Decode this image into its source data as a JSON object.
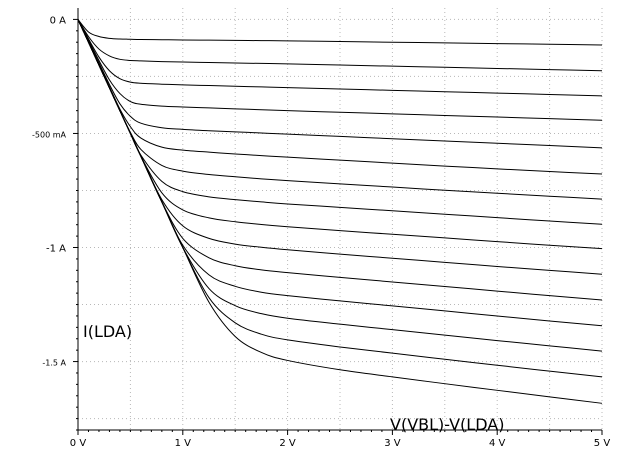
{
  "chart_data": {
    "type": "line",
    "xlabel": "V(VBL)-V(LDA)",
    "ylabel": "I(LDA)",
    "xlim": [
      0,
      5
    ],
    "ylim": [
      -1.8,
      0.05
    ],
    "x_ticks": [
      {
        "value": 0,
        "label": "0 V"
      },
      {
        "value": 1,
        "label": "1 V"
      },
      {
        "value": 2,
        "label": "2 V"
      },
      {
        "value": 3,
        "label": "3 V"
      },
      {
        "value": 4,
        "label": "4 V"
      },
      {
        "value": 5,
        "label": "5 V"
      }
    ],
    "y_ticks": [
      {
        "value": 0,
        "label": "0 A"
      },
      {
        "value": -0.5,
        "label": "-500 mA"
      },
      {
        "value": -1,
        "label": "-1 A"
      },
      {
        "value": -1.5,
        "label": "-1.5 A"
      }
    ],
    "grid": true,
    "x": [
      0,
      0.1,
      0.2,
      0.3,
      0.4,
      0.5,
      0.6,
      0.8,
      1.0,
      1.25,
      1.5,
      1.75,
      2.0,
      2.5,
      3.0,
      3.5,
      4.0,
      4.5,
      5.0
    ],
    "series": [
      {
        "values": [
          0,
          -0.055,
          -0.075,
          -0.083,
          -0.086,
          -0.087,
          -0.088,
          -0.089,
          -0.09,
          -0.091,
          -0.092,
          -0.093,
          -0.094,
          -0.097,
          -0.1,
          -0.103,
          -0.106,
          -0.109,
          -0.112
        ]
      },
      {
        "values": [
          0,
          -0.075,
          -0.13,
          -0.16,
          -0.175,
          -0.18,
          -0.182,
          -0.185,
          -0.187,
          -0.189,
          -0.191,
          -0.193,
          -0.195,
          -0.2,
          -0.205,
          -0.21,
          -0.215,
          -0.22,
          -0.225
        ]
      },
      {
        "values": [
          0,
          -0.085,
          -0.165,
          -0.225,
          -0.26,
          -0.275,
          -0.28,
          -0.284,
          -0.287,
          -0.29,
          -0.293,
          -0.296,
          -0.299,
          -0.305,
          -0.311,
          -0.317,
          -0.323,
          -0.329,
          -0.335
        ]
      },
      {
        "values": [
          0,
          -0.09,
          -0.18,
          -0.265,
          -0.325,
          -0.36,
          -0.372,
          -0.38,
          -0.384,
          -0.388,
          -0.392,
          -0.396,
          -0.4,
          -0.407,
          -0.414,
          -0.421,
          -0.428,
          -0.435,
          -0.442
        ]
      },
      {
        "values": [
          0,
          -0.095,
          -0.19,
          -0.285,
          -0.37,
          -0.425,
          -0.455,
          -0.475,
          -0.482,
          -0.488,
          -0.493,
          -0.498,
          -0.503,
          -0.513,
          -0.523,
          -0.533,
          -0.543,
          -0.553,
          -0.563
        ]
      },
      {
        "values": [
          0,
          -0.098,
          -0.197,
          -0.295,
          -0.393,
          -0.47,
          -0.52,
          -0.56,
          -0.573,
          -0.582,
          -0.59,
          -0.597,
          -0.604,
          -0.617,
          -0.63,
          -0.643,
          -0.655,
          -0.667,
          -0.678
        ]
      },
      {
        "values": [
          0,
          -0.1,
          -0.2,
          -0.3,
          -0.4,
          -0.495,
          -0.57,
          -0.64,
          -0.665,
          -0.68,
          -0.69,
          -0.699,
          -0.707,
          -0.721,
          -0.735,
          -0.749,
          -0.762,
          -0.775,
          -0.788
        ]
      },
      {
        "values": [
          0,
          -0.1,
          -0.2,
          -0.3,
          -0.4,
          -0.5,
          -0.595,
          -0.71,
          -0.755,
          -0.778,
          -0.79,
          -0.8,
          -0.809,
          -0.824,
          -0.839,
          -0.854,
          -0.869,
          -0.884,
          -0.898
        ]
      },
      {
        "values": [
          0,
          -0.1,
          -0.2,
          -0.3,
          -0.4,
          -0.5,
          -0.6,
          -0.76,
          -0.835,
          -0.87,
          -0.887,
          -0.899,
          -0.909,
          -0.926,
          -0.942,
          -0.958,
          -0.974,
          -0.99,
          -1.005
        ]
      },
      {
        "values": [
          0,
          -0.1,
          -0.2,
          -0.3,
          -0.4,
          -0.5,
          -0.6,
          -0.79,
          -0.905,
          -0.96,
          -0.985,
          -0.999,
          -1.01,
          -1.029,
          -1.047,
          -1.065,
          -1.083,
          -1.1,
          -1.117
        ]
      },
      {
        "values": [
          0,
          -0.1,
          -0.2,
          -0.3,
          -0.4,
          -0.5,
          -0.6,
          -0.8,
          -0.96,
          -1.045,
          -1.08,
          -1.098,
          -1.11,
          -1.131,
          -1.151,
          -1.171,
          -1.191,
          -1.211,
          -1.23
        ]
      },
      {
        "values": [
          0,
          -0.1,
          -0.2,
          -0.3,
          -0.4,
          -0.5,
          -0.6,
          -0.8,
          -0.99,
          -1.12,
          -1.17,
          -1.196,
          -1.211,
          -1.234,
          -1.256,
          -1.278,
          -1.3,
          -1.322,
          -1.343
        ]
      },
      {
        "values": [
          0,
          -0.1,
          -0.2,
          -0.3,
          -0.4,
          -0.5,
          -0.6,
          -0.8,
          -1.0,
          -1.18,
          -1.255,
          -1.29,
          -1.31,
          -1.336,
          -1.36,
          -1.384,
          -1.408,
          -1.431,
          -1.454
        ]
      },
      {
        "values": [
          0,
          -0.1,
          -0.2,
          -0.3,
          -0.4,
          -0.5,
          -0.6,
          -0.8,
          -1.0,
          -1.22,
          -1.33,
          -1.38,
          -1.405,
          -1.436,
          -1.463,
          -1.49,
          -1.516,
          -1.542,
          -1.567
        ]
      },
      {
        "values": [
          0,
          -0.1,
          -0.2,
          -0.3,
          -0.4,
          -0.5,
          -0.6,
          -0.8,
          -1.0,
          -1.24,
          -1.39,
          -1.46,
          -1.495,
          -1.536,
          -1.567,
          -1.597,
          -1.626,
          -1.655,
          -1.683
        ]
      }
    ]
  }
}
